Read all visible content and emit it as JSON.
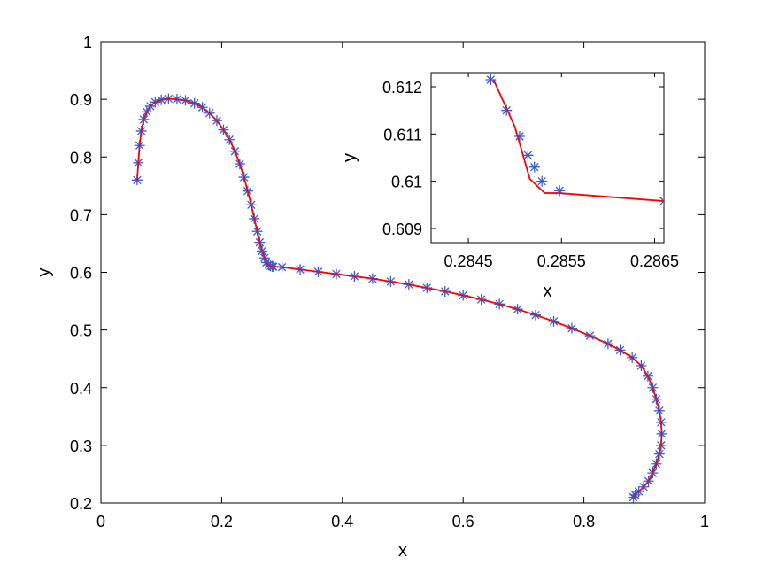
{
  "chart_data": [
    {
      "type": "line",
      "role": "main",
      "xlabel": "x",
      "ylabel": "y",
      "xlim": [
        0,
        1
      ],
      "ylim": [
        0.2,
        1
      ],
      "xticks": [
        "0",
        "0.2",
        "0.4",
        "0.6",
        "0.8",
        "1"
      ],
      "yticks": [
        "0.2",
        "0.3",
        "0.4",
        "0.5",
        "0.6",
        "0.7",
        "0.8",
        "0.9",
        "1"
      ],
      "grid": false,
      "series": [
        {
          "style": "solid line",
          "color": "#ff0000",
          "x": [
            0.06,
            0.062,
            0.064,
            0.067,
            0.071,
            0.076,
            0.082,
            0.09,
            0.1,
            0.112,
            0.126,
            0.14,
            0.155,
            0.168,
            0.18,
            0.192,
            0.203,
            0.213,
            0.222,
            0.23,
            0.237,
            0.243,
            0.249,
            0.254,
            0.259,
            0.263,
            0.267,
            0.271,
            0.274,
            0.278,
            0.281,
            0.284,
            0.2855,
            0.3,
            0.33,
            0.36,
            0.39,
            0.42,
            0.45,
            0.48,
            0.51,
            0.54,
            0.57,
            0.6,
            0.63,
            0.66,
            0.69,
            0.72,
            0.75,
            0.78,
            0.81,
            0.84,
            0.86,
            0.88,
            0.895,
            0.906,
            0.914,
            0.92,
            0.925,
            0.928,
            0.929,
            0.928,
            0.925,
            0.92,
            0.914,
            0.907,
            0.899,
            0.891,
            0.885,
            0.882
          ],
          "y": [
            0.76,
            0.79,
            0.82,
            0.845,
            0.865,
            0.878,
            0.888,
            0.895,
            0.899,
            0.901,
            0.9,
            0.898,
            0.893,
            0.886,
            0.876,
            0.863,
            0.847,
            0.83,
            0.81,
            0.788,
            0.765,
            0.741,
            0.717,
            0.693,
            0.671,
            0.652,
            0.637,
            0.625,
            0.617,
            0.613,
            0.611,
            0.6102,
            0.6098,
            0.609,
            0.605,
            0.601,
            0.597,
            0.593,
            0.589,
            0.584,
            0.579,
            0.573,
            0.567,
            0.56,
            0.553,
            0.545,
            0.536,
            0.526,
            0.515,
            0.503,
            0.49,
            0.476,
            0.465,
            0.452,
            0.438,
            0.42,
            0.4,
            0.38,
            0.36,
            0.34,
            0.32,
            0.3,
            0.285,
            0.268,
            0.252,
            0.238,
            0.228,
            0.22,
            0.214,
            0.21
          ]
        },
        {
          "style": "asterisk markers",
          "color": "#3b5bd6",
          "x": [
            0.06,
            0.062,
            0.064,
            0.067,
            0.071,
            0.076,
            0.082,
            0.09,
            0.1,
            0.112,
            0.126,
            0.14,
            0.155,
            0.168,
            0.18,
            0.192,
            0.203,
            0.213,
            0.222,
            0.23,
            0.237,
            0.243,
            0.249,
            0.254,
            0.259,
            0.263,
            0.267,
            0.271,
            0.274,
            0.278,
            0.281,
            0.284,
            0.2855,
            0.3,
            0.33,
            0.36,
            0.39,
            0.42,
            0.45,
            0.48,
            0.51,
            0.54,
            0.57,
            0.6,
            0.63,
            0.66,
            0.69,
            0.72,
            0.75,
            0.78,
            0.81,
            0.84,
            0.86,
            0.88,
            0.895,
            0.906,
            0.914,
            0.92,
            0.925,
            0.928,
            0.929,
            0.928,
            0.925,
            0.92,
            0.914,
            0.907,
            0.899,
            0.891,
            0.885,
            0.882
          ],
          "y": [
            0.76,
            0.79,
            0.82,
            0.845,
            0.865,
            0.878,
            0.888,
            0.895,
            0.899,
            0.901,
            0.9,
            0.898,
            0.893,
            0.886,
            0.876,
            0.863,
            0.847,
            0.83,
            0.81,
            0.788,
            0.765,
            0.741,
            0.717,
            0.693,
            0.671,
            0.652,
            0.637,
            0.625,
            0.617,
            0.613,
            0.611,
            0.6102,
            0.6098,
            0.609,
            0.605,
            0.601,
            0.597,
            0.593,
            0.589,
            0.584,
            0.579,
            0.573,
            0.567,
            0.56,
            0.553,
            0.545,
            0.536,
            0.526,
            0.515,
            0.503,
            0.49,
            0.476,
            0.465,
            0.452,
            0.438,
            0.42,
            0.4,
            0.38,
            0.36,
            0.34,
            0.32,
            0.3,
            0.285,
            0.268,
            0.252,
            0.238,
            0.228,
            0.22,
            0.214,
            0.21
          ]
        }
      ]
    },
    {
      "type": "line",
      "role": "inset",
      "xlabel": "x",
      "ylabel": "y",
      "xlim": [
        0.2841,
        0.2866
      ],
      "ylim": [
        0.6087,
        0.6123
      ],
      "xticks": [
        "0.2845",
        "0.2855",
        "0.2865"
      ],
      "yticks": [
        "0.609",
        "0.61",
        "0.611",
        "0.612"
      ],
      "grid": false,
      "series": [
        {
          "style": "solid line",
          "color": "#ff0000",
          "x": [
            0.28477,
            0.285,
            0.28516,
            0.28532,
            0.28547,
            0.2866
          ],
          "y": [
            0.61215,
            0.61115,
            0.61005,
            0.60975,
            0.60975,
            0.60958
          ]
        },
        {
          "style": "asterisk markers",
          "color": "#3b5bd6",
          "x": [
            0.28474,
            0.28491,
            0.28505,
            0.28514,
            0.28521,
            0.28529,
            0.28548,
            0.2866
          ],
          "y": [
            0.61215,
            0.6115,
            0.61095,
            0.61055,
            0.6103,
            0.61,
            0.6098,
            0.60958
          ]
        }
      ]
    }
  ]
}
